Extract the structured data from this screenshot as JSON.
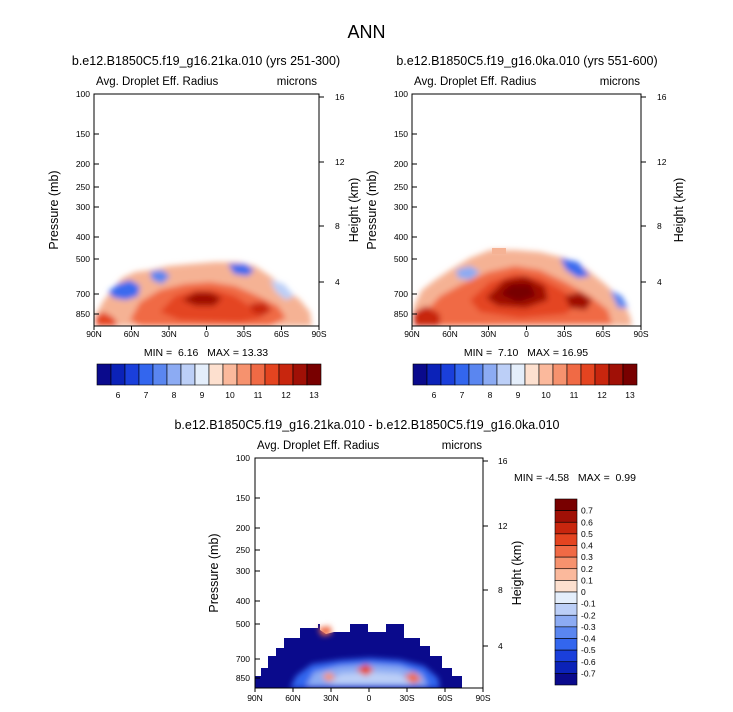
{
  "figure_title": "ANN",
  "colors": {
    "abs_scale": [
      "#0a0a8c",
      "#0b22b8",
      "#1a3fdb",
      "#3366ee",
      "#5a86f0",
      "#8cabf3",
      "#bccff7",
      "#e4eefb",
      "#fde0cf",
      "#fbb99c",
      "#f6926e",
      "#f06a45",
      "#e44420",
      "#c8260e",
      "#a01006",
      "#780000"
    ],
    "diff_scale": [
      "#0a0a8c",
      "#0b22b8",
      "#1a3fdb",
      "#3366ee",
      "#5a86f0",
      "#8cabf3",
      "#bccff7",
      "#e4eefb",
      "#fde0cf",
      "#fbb99c",
      "#f6926e",
      "#f06a45",
      "#e44420",
      "#c8260e",
      "#a01006",
      "#780000"
    ]
  },
  "chart_data": [
    {
      "type": "heatmap",
      "title": "b.e12.B1850C5.f19_g16.21ka.010 (yrs 251-300)",
      "left_label": "Avg. Droplet Eff. Radius",
      "right_label": "microns",
      "xlabel": "",
      "ylabel": "Pressure (mb)",
      "ylabel_right": "Height (km)",
      "x_ticks": [
        "90N",
        "60N",
        "30N",
        "0",
        "30S",
        "60S",
        "90S"
      ],
      "y_ticks": [
        "100",
        "150",
        "200",
        "250",
        "300",
        "400",
        "500",
        "700",
        "850"
      ],
      "y_ticks_right": [
        "16",
        "12",
        "8",
        "4"
      ],
      "ylim": [
        1000,
        100
      ],
      "stats_text": "MIN =  6.16   MAX = 13.33",
      "cloud_extent": "low clouds below ~450 mb, latitudes ~85N to ~80S",
      "min": 6.16,
      "max": 13.33
    },
    {
      "type": "heatmap",
      "title": "b.e12.B1850C5.f19_g16.0ka.010 (yrs 551-600)",
      "left_label": "Avg. Droplet Eff. Radius",
      "right_label": "microns",
      "xlabel": "",
      "ylabel": "Pressure (mb)",
      "ylabel_right": "Height (km)",
      "x_ticks": [
        "90N",
        "60N",
        "30N",
        "0",
        "30S",
        "60S",
        "90S"
      ],
      "y_ticks": [
        "100",
        "150",
        "200",
        "250",
        "300",
        "400",
        "500",
        "700",
        "850"
      ],
      "y_ticks_right": [
        "16",
        "12",
        "8",
        "4"
      ],
      "ylim": [
        1000,
        100
      ],
      "stats_text": "MIN =  7.10   MAX = 16.95",
      "min": 7.1,
      "max": 16.95
    },
    {
      "type": "heatmap",
      "title": "b.e12.B1850C5.f19_g16.21ka.010 - b.e12.B1850C5.f19_g16.0ka.010",
      "left_label": "Avg. Droplet Eff. Radius",
      "right_label": "microns",
      "xlabel": "",
      "ylabel": "Pressure (mb)",
      "ylabel_right": "Height (km)",
      "x_ticks": [
        "90N",
        "60N",
        "30N",
        "0",
        "30S",
        "60S",
        "90S"
      ],
      "y_ticks": [
        "100",
        "150",
        "200",
        "250",
        "300",
        "400",
        "500",
        "700",
        "850"
      ],
      "y_ticks_right": [
        "16",
        "12",
        "8",
        "4"
      ],
      "ylim": [
        1000,
        100
      ],
      "stats_text": "MIN = -4.58   MAX =  0.99",
      "min": -4.58,
      "max": 0.99
    }
  ],
  "colorbars": [
    {
      "orientation": "horizontal",
      "labels": [
        "6",
        "7",
        "8",
        "9",
        "10",
        "11",
        "12",
        "13"
      ]
    },
    {
      "orientation": "horizontal",
      "labels": [
        "6",
        "7",
        "8",
        "9",
        "10",
        "11",
        "12",
        "13"
      ]
    },
    {
      "orientation": "vertical",
      "labels": [
        "0.7",
        "0.6",
        "0.5",
        "0.4",
        "0.3",
        "0.2",
        "0.1",
        "0",
        "-0.1",
        "-0.2",
        "-0.3",
        "-0.4",
        "-0.5",
        "-0.6",
        "-0.7"
      ]
    }
  ]
}
